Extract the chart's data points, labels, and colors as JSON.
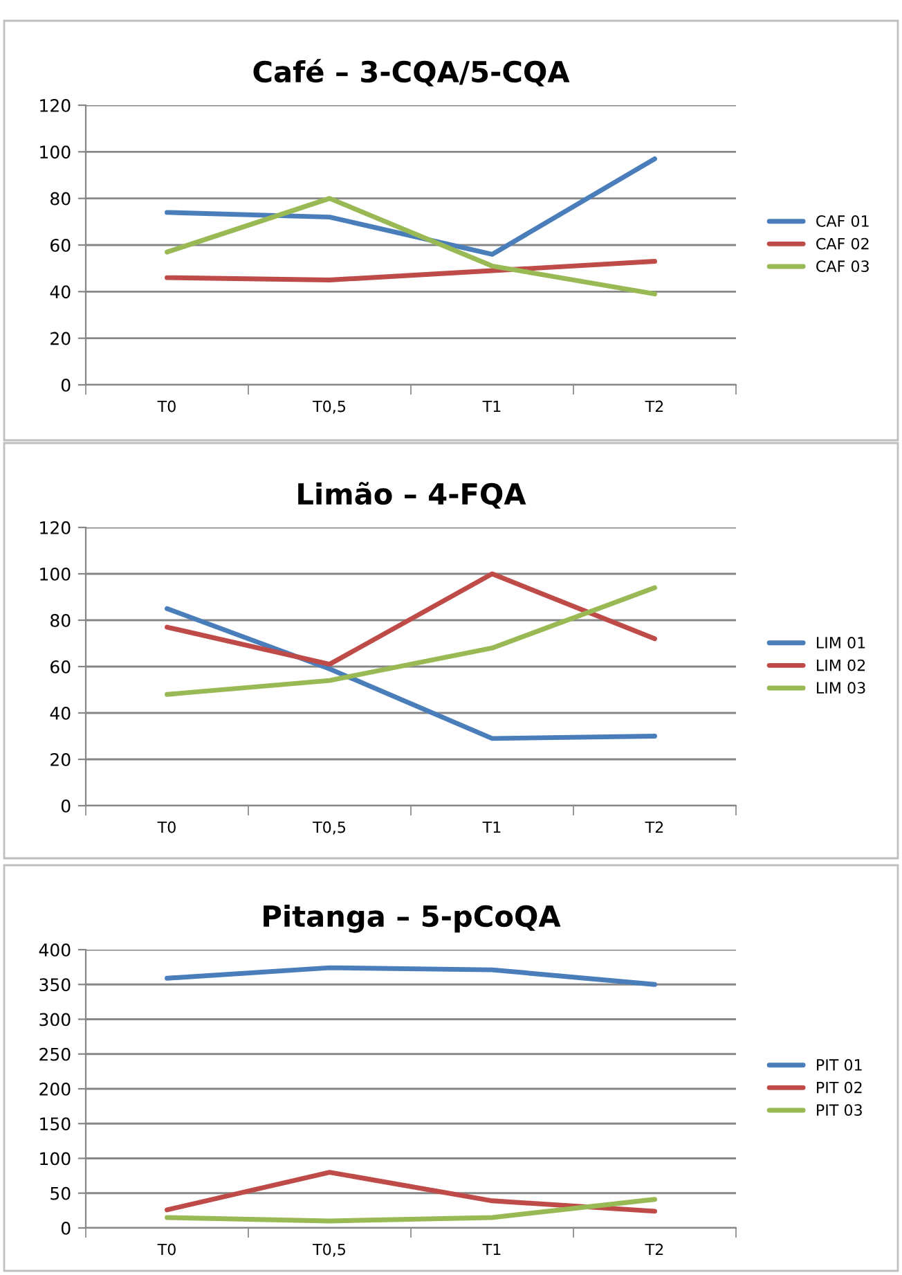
{
  "chart_data": [
    {
      "type": "line",
      "title": "Café – 3-CQA/5-CQA",
      "categories": [
        "T0",
        "T0,5",
        "T1",
        "T2"
      ],
      "ylim": [
        0,
        120
      ],
      "yticks": [
        0,
        20,
        40,
        60,
        80,
        100,
        120
      ],
      "grid": "y",
      "legend": "right",
      "series": [
        {
          "name": "CAF 01",
          "color": "#4a7ebb",
          "values": [
            74,
            72,
            56,
            97
          ]
        },
        {
          "name": "CAF 02",
          "color": "#be4b48",
          "values": [
            46,
            45,
            49,
            53
          ]
        },
        {
          "name": "CAF 03",
          "color": "#98b954",
          "values": [
            57,
            80,
            51,
            39
          ]
        }
      ]
    },
    {
      "type": "line",
      "title": "Limão – 4-FQA",
      "categories": [
        "T0",
        "T0,5",
        "T1",
        "T2"
      ],
      "ylim": [
        0,
        120
      ],
      "yticks": [
        0,
        20,
        40,
        60,
        80,
        100,
        120
      ],
      "grid": "y",
      "legend": "right",
      "series": [
        {
          "name": "LIM 01",
          "color": "#4a7ebb",
          "values": [
            85,
            59,
            29,
            30
          ]
        },
        {
          "name": "LIM 02",
          "color": "#be4b48",
          "values": [
            77,
            61,
            100,
            72
          ]
        },
        {
          "name": "LIM 03",
          "color": "#98b954",
          "values": [
            48,
            54,
            68,
            94
          ]
        }
      ]
    },
    {
      "type": "line",
      "title": "Pitanga – 5-pCoQA",
      "categories": [
        "T0",
        "T0,5",
        "T1",
        "T2"
      ],
      "ylim": [
        0,
        400
      ],
      "yticks": [
        0,
        50,
        100,
        150,
        200,
        250,
        300,
        350,
        400
      ],
      "grid": "y",
      "legend": "right",
      "series": [
        {
          "name": "PIT 01",
          "color": "#4a7ebb",
          "values": [
            359,
            374,
            371,
            350
          ]
        },
        {
          "name": "PIT 02",
          "color": "#be4b48",
          "values": [
            26,
            80,
            39,
            24
          ]
        },
        {
          "name": "PIT 03",
          "color": "#98b954",
          "values": [
            15,
            10,
            15,
            41
          ]
        }
      ]
    }
  ]
}
